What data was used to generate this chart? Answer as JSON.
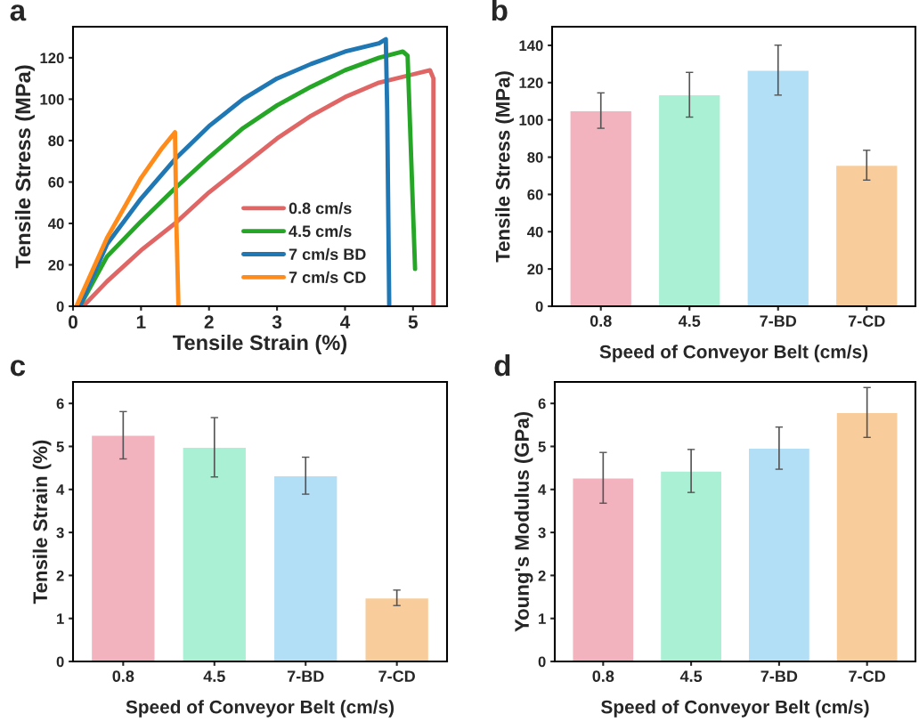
{
  "chart_data": [
    {
      "type": "line",
      "title": "a",
      "xlabel": "Tensile Strain (%)",
      "ylabel": "Tensile Stress (MPa)",
      "xlim": [
        0,
        5.5
      ],
      "ylim": [
        0,
        135
      ],
      "xticks": [
        0,
        1,
        2,
        3,
        4,
        5
      ],
      "yticks": [
        0,
        20,
        40,
        60,
        80,
        100,
        120
      ],
      "legend": "bottom",
      "grid": false,
      "marker": "none",
      "line_style": "solid",
      "series": [
        {
          "name": "0.8 cm/s",
          "color": "#e06666",
          "x": [
            0.15,
            0.5,
            1,
            1.5,
            2,
            2.5,
            3,
            3.5,
            4,
            4.5,
            5,
            5.25,
            5.3,
            5.3
          ],
          "values": [
            0,
            12,
            27,
            40,
            55,
            68,
            81,
            92,
            101,
            108,
            112,
            114,
            110,
            0
          ]
        },
        {
          "name": "4.5 cm/s",
          "color": "#26a626",
          "x": [
            0.1,
            0.5,
            1,
            1.5,
            2,
            2.5,
            3,
            3.5,
            4,
            4.5,
            4.85,
            4.92,
            5.03
          ],
          "values": [
            0,
            24,
            41,
            57,
            72,
            86,
            97,
            106,
            114,
            120,
            123,
            121,
            18
          ]
        },
        {
          "name": "7 cm/s BD",
          "color": "#1f77b4",
          "x": [
            0.1,
            0.5,
            1,
            1.5,
            2,
            2.5,
            3,
            3.5,
            4,
            4.5,
            4.6,
            4.62,
            4.65
          ],
          "values": [
            0,
            30,
            52,
            71,
            87,
            100,
            110,
            117,
            123,
            127,
            129,
            95,
            0
          ]
        },
        {
          "name": "7 cm/s CD",
          "color": "#ff8c1a",
          "x": [
            0.05,
            0.5,
            1,
            1.3,
            1.5,
            1.52,
            1.55
          ],
          "values": [
            0,
            33,
            62,
            76,
            84,
            40,
            0
          ]
        }
      ]
    },
    {
      "type": "bar",
      "title": "b",
      "xlabel": "Speed of Conveyor Belt (cm/s)",
      "ylabel": "Tensile Stress (MPa)",
      "categories": [
        "0.8",
        "4.5",
        "7-BD",
        "7-CD"
      ],
      "ylim": [
        0,
        150
      ],
      "yticks": [
        0,
        20,
        40,
        60,
        80,
        100,
        120,
        140
      ],
      "grid": false,
      "values": [
        105,
        113.5,
        126.7,
        75.7
      ],
      "errors": [
        9.5,
        12,
        13.4,
        8
      ],
      "colors": [
        "#f2b3bf",
        "#aaf0d4",
        "#b2def6",
        "#f9cc9c"
      ]
    },
    {
      "type": "bar",
      "title": "c",
      "xlabel": "Speed of Conveyor Belt (cm/s)",
      "ylabel": "Tensile Strain (%)",
      "categories": [
        "0.8",
        "4.5",
        "7-BD",
        "7-CD"
      ],
      "ylim": [
        0,
        6.5
      ],
      "yticks": [
        0,
        1,
        2,
        3,
        4,
        5,
        6
      ],
      "grid": false,
      "values": [
        5.26,
        4.98,
        4.32,
        1.48
      ],
      "errors": [
        0.55,
        0.69,
        0.43,
        0.18
      ],
      "colors": [
        "#f2b3bf",
        "#aaf0d4",
        "#b2def6",
        "#f9cc9c"
      ]
    },
    {
      "type": "bar",
      "title": "d",
      "xlabel": "Speed of Conveyor Belt (cm/s)",
      "ylabel": "Young's Modulus (GPa)",
      "categories": [
        "0.8",
        "4.5",
        "7-BD",
        "7-CD"
      ],
      "ylim": [
        0,
        6.5
      ],
      "yticks": [
        0,
        1,
        2,
        3,
        4,
        5,
        6
      ],
      "grid": false,
      "values": [
        4.27,
        4.43,
        4.96,
        5.79
      ],
      "errors": [
        0.59,
        0.5,
        0.49,
        0.58
      ],
      "colors": [
        "#f2b3bf",
        "#aaf0d4",
        "#b2def6",
        "#f9cc9c"
      ]
    }
  ]
}
